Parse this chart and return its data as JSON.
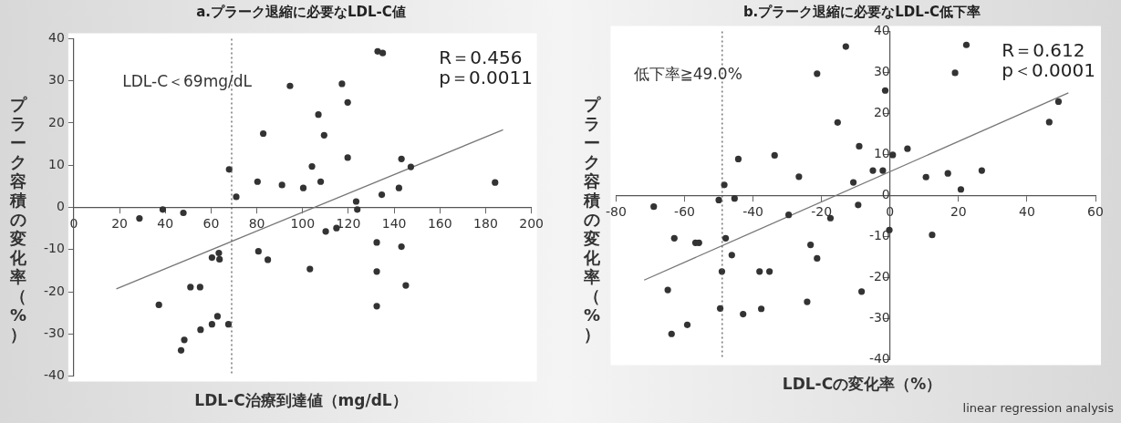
{
  "chart_data": [
    {
      "type": "scatter",
      "title": "a.プラーク退縮に必要なLDL-C値",
      "xlabel": "LDL-C治療到達値（mg/dL）",
      "ylabel": "プラーク容積の変化率（%）",
      "annotations": [
        "R＝0.456",
        "p＝0.0011"
      ],
      "xlim": [
        0,
        200
      ],
      "xticks": [
        0,
        20,
        40,
        60,
        80,
        100,
        120,
        140,
        160,
        180,
        200
      ],
      "ylim": [
        -40,
        40
      ],
      "yticks": [
        -40,
        -30,
        -20,
        -10,
        0,
        10,
        20,
        30,
        40
      ],
      "grid": false,
      "legend": false,
      "marker": "circle",
      "ref_lines": [
        {
          "axis": "x",
          "value": 69,
          "label": "LDL-C＜69mg/dL",
          "line_style": "dotted",
          "color": "#555555"
        }
      ],
      "series": [
        {
          "type": "scatter",
          "color": "#333333",
          "x": [
            132.8,
            135,
            94.5,
            117.2,
            119.7,
            106.9,
            109.4,
            82.8,
            119.7,
            143.2,
            147.3,
            67.9,
            104.1,
            80.3,
            91,
            100.3,
            107.9,
            184.1,
            71,
            134.6,
            142.1,
            123.4,
            123.9,
            38.9,
            28.7,
            47.9,
            110.1,
            114.8,
            132.4,
            143.2,
            80.7,
            84.8,
            60.4,
            63.4,
            63.7,
            103.2,
            132.4,
            145.1,
            51,
            55.2,
            37.2,
            132.4,
            67.6,
            62.8,
            60.4,
            55.4,
            48.3,
            46.9
          ],
          "values": [
            37,
            36.6,
            28.8,
            29.3,
            24.9,
            22,
            17.1,
            17.5,
            11.8,
            11.5,
            9.6,
            9,
            9.7,
            6.1,
            5.3,
            4.6,
            6.1,
            5.9,
            2.5,
            3,
            4.6,
            1.4,
            -0.5,
            -0.5,
            -2.6,
            -1.3,
            -5.7,
            -4.9,
            -8.3,
            -9.3,
            -10.4,
            -12.4,
            -11.9,
            -10.8,
            -12.3,
            -14.6,
            -15.2,
            -18.5,
            -18.9,
            -18.9,
            -23.1,
            -23.4,
            -27.7,
            -25.8,
            -27.7,
            -29,
            -31.4,
            -33.9
          ]
        },
        {
          "type": "line",
          "color": "#777777",
          "marker": "none",
          "line_style": "solid",
          "x": [
            18.6,
            187.6
          ],
          "values": [
            -19.3,
            18.4
          ]
        }
      ]
    },
    {
      "type": "scatter",
      "title": "b.プラーク退縮に必要なLDL-C低下率",
      "xlabel": "LDL-Cの変化率（%）",
      "ylabel": "プラーク容積の変化率（%）",
      "annotations": [
        "R＝0.612",
        "p＜0.0001",
        "linear regression analysis"
      ],
      "xlim": [
        -80,
        60
      ],
      "xticks": [
        -80,
        -60,
        -40,
        -20,
        0,
        20,
        40,
        60
      ],
      "ylim": [
        -40,
        40
      ],
      "yticks": [
        -40,
        -30,
        -20,
        -10,
        0,
        10,
        20,
        30,
        40
      ],
      "grid": false,
      "legend": false,
      "marker": "circle",
      "ref_lines": [
        {
          "axis": "x",
          "value": -49,
          "label": "低下率≧49.0%",
          "line_style": "dotted",
          "color": "#555555"
        }
      ],
      "series": [
        {
          "type": "scatter",
          "color": "#333333",
          "x": [
            22.3,
            19,
            -12.9,
            -21.3,
            -1.4,
            -15.3,
            46.5,
            49.2,
            5.1,
            0.8,
            -9,
            -33.7,
            -44.3,
            -26.6,
            -5,
            -2.1,
            10.5,
            16.9,
            26.8,
            -10.7,
            20.7,
            -48.4,
            -50,
            -45.4,
            -69,
            -29.6,
            -17.4,
            -9.3,
            -0.2,
            12.3,
            -63,
            -56.8,
            -55.8,
            -48,
            -46.2,
            -23.2,
            -21.3,
            -49.1,
            -38.1,
            -35.2,
            -64.9,
            -8.3,
            -24.2,
            -49.6,
            -42.9,
            -37.6,
            -59.2,
            -63.8
          ],
          "values": [
            36.7,
            29.9,
            36.3,
            29.7,
            25.6,
            17.8,
            17.9,
            22.9,
            11.4,
            9.9,
            12,
            9.8,
            8.9,
            4.6,
            6.1,
            6.1,
            4.5,
            5.4,
            6.1,
            3.2,
            1.5,
            2.6,
            -1.1,
            -0.7,
            -2.7,
            -4.7,
            -5.5,
            -2.3,
            -8.4,
            -9.6,
            -10.4,
            -11.5,
            -11.5,
            -10.4,
            -14.5,
            -12,
            -15.3,
            -18.5,
            -18.5,
            -18.5,
            -23,
            -23.4,
            -25.9,
            -27.5,
            -28.9,
            -27.6,
            -31.5,
            -33.7
          ]
        },
        {
          "type": "line",
          "color": "#777777",
          "marker": "none",
          "line_style": "solid",
          "x": [
            -71.8,
            52.1
          ],
          "values": [
            -20.6,
            25
          ]
        }
      ]
    }
  ]
}
